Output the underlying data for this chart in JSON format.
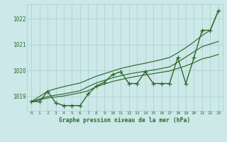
{
  "xlabel": "Graphe pression niveau de la mer (hPa)",
  "hours": [
    0,
    1,
    2,
    3,
    4,
    5,
    6,
    7,
    8,
    9,
    10,
    11,
    12,
    13,
    14,
    15,
    16,
    17,
    18,
    19,
    20,
    21,
    22,
    23
  ],
  "series": {
    "main": [
      1018.8,
      1018.8,
      1019.2,
      1018.75,
      1018.65,
      1018.65,
      1018.65,
      1019.1,
      1019.4,
      1019.55,
      1019.85,
      1019.95,
      1019.5,
      1019.5,
      1019.95,
      1019.5,
      1019.5,
      1019.5,
      1020.5,
      1019.5,
      1020.5,
      1021.55,
      1021.55,
      1022.3
    ],
    "trend_low": [
      1018.8,
      1018.87,
      1018.94,
      1018.98,
      1019.02,
      1019.08,
      1019.14,
      1019.22,
      1019.38,
      1019.48,
      1019.58,
      1019.65,
      1019.72,
      1019.78,
      1019.83,
      1019.88,
      1019.93,
      1019.98,
      1020.08,
      1020.18,
      1020.3,
      1020.45,
      1020.52,
      1020.62
    ],
    "trend_mid": [
      1018.8,
      1018.9,
      1019.0,
      1019.05,
      1019.1,
      1019.16,
      1019.22,
      1019.38,
      1019.52,
      1019.62,
      1019.72,
      1019.8,
      1019.87,
      1019.92,
      1019.97,
      1020.02,
      1020.08,
      1020.14,
      1020.32,
      1020.52,
      1020.72,
      1020.92,
      1021.02,
      1021.12
    ],
    "trend_high": [
      1018.8,
      1019.0,
      1019.2,
      1019.3,
      1019.38,
      1019.45,
      1019.52,
      1019.65,
      1019.78,
      1019.88,
      1019.98,
      1020.08,
      1020.15,
      1020.22,
      1020.28,
      1020.35,
      1020.42,
      1020.5,
      1020.68,
      1020.88,
      1021.1,
      1021.35,
      1021.55,
      1022.3
    ]
  },
  "line_color": "#2d6a2d",
  "bg_color": "#cce8e8",
  "grid_color": "#aacece",
  "text_color": "#2d6a2d",
  "ylim": [
    1018.45,
    1022.55
  ],
  "yticks": [
    1019,
    1020,
    1021,
    1022
  ],
  "marker": "+",
  "markersize": 4,
  "linewidth": 1.0
}
